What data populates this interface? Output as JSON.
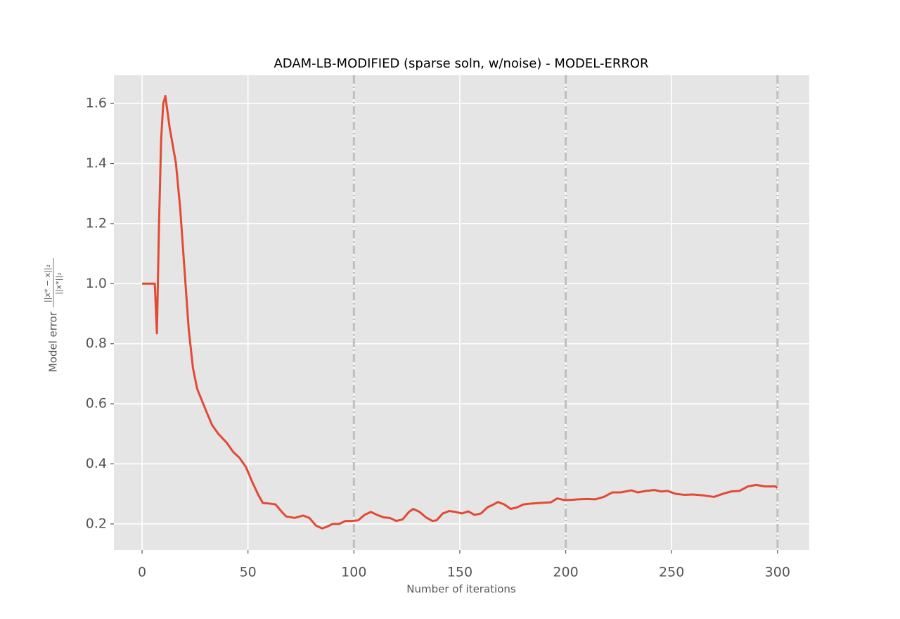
{
  "chart_data": {
    "type": "line",
    "title": "ADAM-LB-MODIFIED (sparse soln, w/noise) - MODEL-ERROR",
    "x_label": "Number of iterations",
    "y_label": "Model error",
    "y_label_fraction": {
      "numerator": "||x* − x||₂",
      "denominator": "||x*||₂"
    },
    "x": [
      0,
      6,
      7,
      8,
      9,
      10,
      11,
      13,
      16,
      18,
      20,
      22,
      24,
      26,
      30,
      33,
      36,
      40,
      43,
      46,
      49,
      52,
      55,
      57,
      60,
      63,
      66,
      68,
      72,
      76,
      79,
      82,
      85,
      87,
      90,
      93,
      96,
      99,
      102,
      105,
      108,
      111,
      114,
      117,
      120,
      123,
      126,
      128,
      131,
      134,
      137,
      139,
      142,
      145,
      148,
      151,
      154,
      157,
      160,
      163,
      166,
      168,
      171,
      174,
      177,
      180,
      184,
      188,
      193,
      196,
      199,
      202,
      206,
      210,
      214,
      218,
      222,
      226,
      231,
      234,
      238,
      242,
      245,
      248,
      252,
      256,
      260,
      265,
      270,
      274,
      278,
      282,
      286,
      290,
      294,
      299,
      300
    ],
    "values": [
      1.0,
      1.0,
      0.835,
      1.2,
      1.48,
      1.6,
      1.625,
      1.52,
      1.4,
      1.25,
      1.05,
      0.85,
      0.72,
      0.65,
      0.58,
      0.53,
      0.5,
      0.47,
      0.44,
      0.42,
      0.39,
      0.34,
      0.295,
      0.27,
      0.268,
      0.265,
      0.24,
      0.225,
      0.22,
      0.228,
      0.22,
      0.195,
      0.185,
      0.19,
      0.2,
      0.2,
      0.21,
      0.21,
      0.212,
      0.23,
      0.24,
      0.23,
      0.222,
      0.22,
      0.21,
      0.215,
      0.24,
      0.25,
      0.24,
      0.222,
      0.21,
      0.212,
      0.235,
      0.243,
      0.24,
      0.235,
      0.242,
      0.23,
      0.235,
      0.255,
      0.265,
      0.273,
      0.265,
      0.25,
      0.255,
      0.265,
      0.268,
      0.27,
      0.272,
      0.285,
      0.28,
      0.28,
      0.282,
      0.283,
      0.282,
      0.29,
      0.305,
      0.305,
      0.312,
      0.305,
      0.31,
      0.313,
      0.308,
      0.31,
      0.3,
      0.297,
      0.298,
      0.295,
      0.29,
      0.3,
      0.308,
      0.31,
      0.325,
      0.33,
      0.325,
      0.325,
      0.32
    ],
    "color": "#e24a33",
    "vlines": [
      100,
      200,
      300
    ],
    "vline_color": "#bfbfbf",
    "xlim": [
      -13.3,
      315
    ],
    "ylim": [
      0.113,
      1.694
    ],
    "xticks": [
      0,
      50,
      100,
      150,
      200,
      250,
      300
    ],
    "yticks": [
      0.2,
      0.4,
      0.6,
      0.8,
      {
        "value": 1,
        "label": "1.0"
      },
      1.2,
      1.4,
      1.6
    ],
    "grid": true
  }
}
